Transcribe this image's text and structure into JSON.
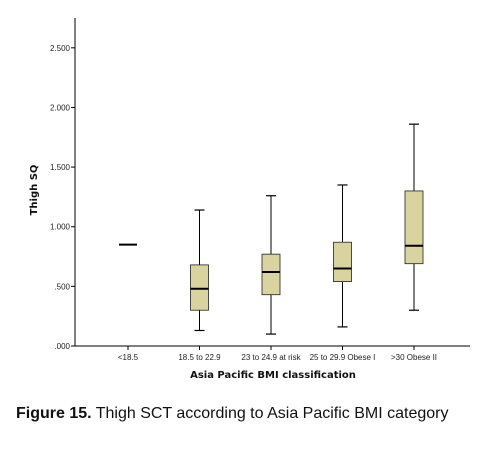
{
  "chart_data": {
    "type": "box",
    "xlabel": "Asia Pacific BMI classification",
    "ylabel": "Thigh SQ",
    "ylim": [
      0,
      2.5
    ],
    "yticks": [
      {
        "value": 0,
        "label": ".000"
      },
      {
        "value": 0.5,
        "label": ".500"
      },
      {
        "value": 1.0,
        "label": "1.000"
      },
      {
        "value": 1.5,
        "label": "1.500"
      },
      {
        "value": 2.0,
        "label": "2.000"
      },
      {
        "value": 2.5,
        "label": "2.500"
      }
    ],
    "categories": [
      "<18.5",
      "18.5 to 22.9",
      "23 to 24.9 at risk",
      "25 to 29.9 Obese I",
      ">30 Obese II"
    ],
    "boxes": [
      {
        "min": 0.85,
        "q1": 0.85,
        "median": 0.85,
        "q3": 0.85,
        "max": 0.85
      },
      {
        "min": 0.13,
        "q1": 0.3,
        "median": 0.48,
        "q3": 0.68,
        "max": 1.14
      },
      {
        "min": 0.1,
        "q1": 0.43,
        "median": 0.62,
        "q3": 0.77,
        "max": 1.26
      },
      {
        "min": 0.16,
        "q1": 0.54,
        "median": 0.65,
        "q3": 0.87,
        "max": 1.35
      },
      {
        "min": 0.3,
        "q1": 0.69,
        "median": 0.84,
        "q3": 1.3,
        "max": 1.86
      }
    ],
    "box_color": "#d9d3a0",
    "line_color": "#000000",
    "grid": false
  },
  "caption": {
    "label": "Figure 15.",
    "text": "Thigh SCT according to Asia Pacific BMI category"
  }
}
